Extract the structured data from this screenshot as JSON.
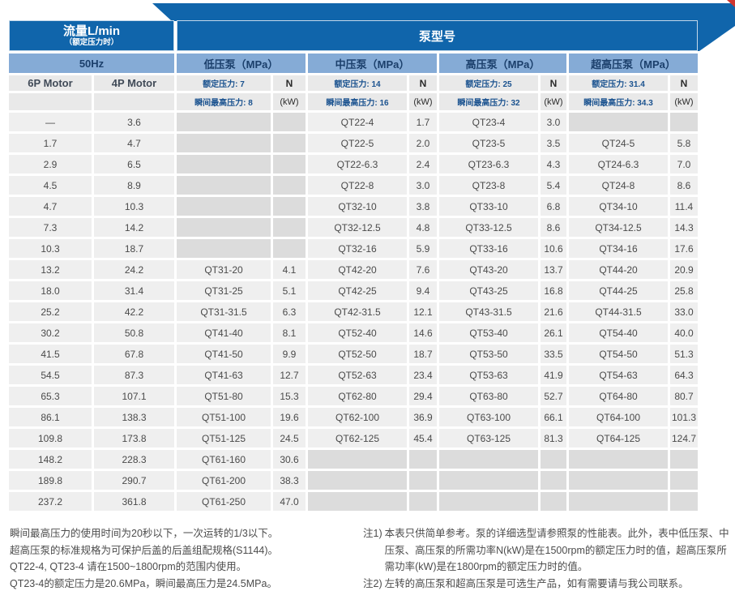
{
  "colors": {
    "dark_blue": "#1065ab",
    "light_blue": "#85abd6",
    "header_gray": "#e9e9e9",
    "cell_gray": "#efefef",
    "empty_gray": "#dcdcdc",
    "red_mark": "#cf3630"
  },
  "table": {
    "header": {
      "flow_title": "流量L/min",
      "flow_subtitle": "（额定压力时）",
      "pump_model_title": "泵型号",
      "freq": "50Hz",
      "motor_labels": [
        "6P Motor",
        "4P Motor"
      ],
      "groups": [
        {
          "label": "低压泵（MPa）",
          "rated": "额定压力: 7",
          "peak": "瞬间最高压力: 8",
          "n_label": "N",
          "kw_label": "(kW)"
        },
        {
          "label": "中压泵（MPa）",
          "rated": "额定压力: 14",
          "peak": "瞬间最高压力: 16",
          "n_label": "N",
          "kw_label": "(kW)"
        },
        {
          "label": "高压泵（MPa）",
          "rated": "额定压力: 25",
          "peak": "瞬间最高压力: 32",
          "n_label": "N",
          "kw_label": "(kW)"
        },
        {
          "label": "超高压泵（MPa）",
          "rated": "额定压力: 31.4",
          "peak": "瞬间最高压力: 34.3",
          "n_label": "N",
          "kw_label": "(kW)"
        }
      ]
    },
    "rows": [
      [
        "—",
        "3.6",
        "",
        "",
        "QT22-4",
        "1.7",
        "QT23-4",
        "3.0",
        "",
        ""
      ],
      [
        "1.7",
        "4.7",
        "",
        "",
        "QT22-5",
        "2.0",
        "QT23-5",
        "3.5",
        "QT24-5",
        "5.8"
      ],
      [
        "2.9",
        "6.5",
        "",
        "",
        "QT22-6.3",
        "2.4",
        "QT23-6.3",
        "4.3",
        "QT24-6.3",
        "7.0"
      ],
      [
        "4.5",
        "8.9",
        "",
        "",
        "QT22-8",
        "3.0",
        "QT23-8",
        "5.4",
        "QT24-8",
        "8.6"
      ],
      [
        "4.7",
        "10.3",
        "",
        "",
        "QT32-10",
        "3.8",
        "QT33-10",
        "6.8",
        "QT34-10",
        "11.4"
      ],
      [
        "7.3",
        "14.2",
        "",
        "",
        "QT32-12.5",
        "4.8",
        "QT33-12.5",
        "8.6",
        "QT34-12.5",
        "14.3"
      ],
      [
        "10.3",
        "18.7",
        "",
        "",
        "QT32-16",
        "5.9",
        "QT33-16",
        "10.6",
        "QT34-16",
        "17.6"
      ],
      [
        "13.2",
        "24.2",
        "QT31-20",
        "4.1",
        "QT42-20",
        "7.6",
        "QT43-20",
        "13.7",
        "QT44-20",
        "20.9"
      ],
      [
        "18.0",
        "31.4",
        "QT31-25",
        "5.1",
        "QT42-25",
        "9.4",
        "QT43-25",
        "16.8",
        "QT44-25",
        "25.8"
      ],
      [
        "25.2",
        "42.2",
        "QT31-31.5",
        "6.3",
        "QT42-31.5",
        "12.1",
        "QT43-31.5",
        "21.6",
        "QT44-31.5",
        "33.0"
      ],
      [
        "30.2",
        "50.8",
        "QT41-40",
        "8.1",
        "QT52-40",
        "14.6",
        "QT53-40",
        "26.1",
        "QT54-40",
        "40.0"
      ],
      [
        "41.5",
        "67.8",
        "QT41-50",
        "9.9",
        "QT52-50",
        "18.7",
        "QT53-50",
        "33.5",
        "QT54-50",
        "51.3"
      ],
      [
        "54.5",
        "87.3",
        "QT41-63",
        "12.7",
        "QT52-63",
        "23.4",
        "QT53-63",
        "41.9",
        "QT54-63",
        "64.3"
      ],
      [
        "65.3",
        "107.1",
        "QT51-80",
        "15.3",
        "QT62-80",
        "29.4",
        "QT63-80",
        "52.7",
        "QT64-80",
        "80.7"
      ],
      [
        "86.1",
        "138.3",
        "QT51-100",
        "19.6",
        "QT62-100",
        "36.9",
        "QT63-100",
        "66.1",
        "QT64-100",
        "101.3"
      ],
      [
        "109.8",
        "173.8",
        "QT51-125",
        "24.5",
        "QT62-125",
        "45.4",
        "QT63-125",
        "81.3",
        "QT64-125",
        "124.7"
      ],
      [
        "148.2",
        "228.3",
        "QT61-160",
        "30.6",
        "",
        "",
        "",
        "",
        "",
        ""
      ],
      [
        "189.8",
        "290.7",
        "QT61-200",
        "38.3",
        "",
        "",
        "",
        "",
        "",
        ""
      ],
      [
        "237.2",
        "361.8",
        "QT61-250",
        "47.0",
        "",
        "",
        "",
        "",
        "",
        ""
      ]
    ]
  },
  "notes_left": [
    "瞬间最高压力的使用时间为20秒以下，一次运转的1/3以下。",
    "超高压泵的标准规格为可保护后盖的后盖组配规格(S1144)。",
    "QT22-4, QT23-4 请在1500~1800rpm的范围内使用。",
    "QT23-4的额定压力是20.6MPa，瞬间最高压力是24.5MPa。"
  ],
  "notes_right": [
    {
      "tag": "注1)",
      "text": "本表只供简单参考。泵的详细选型请参照泵的性能表。此外，表中低压泵、中压泵、高压泵的所需功率N(kW)是在1500rpm的额定压力时的值，超高压泵所需功率(kW)是在1800rpm的额定压力时的值。"
    },
    {
      "tag": "注2)",
      "text": "左转的高压泵和超高压泵是可选生产品，如有需要请与我公司联系。"
    }
  ]
}
